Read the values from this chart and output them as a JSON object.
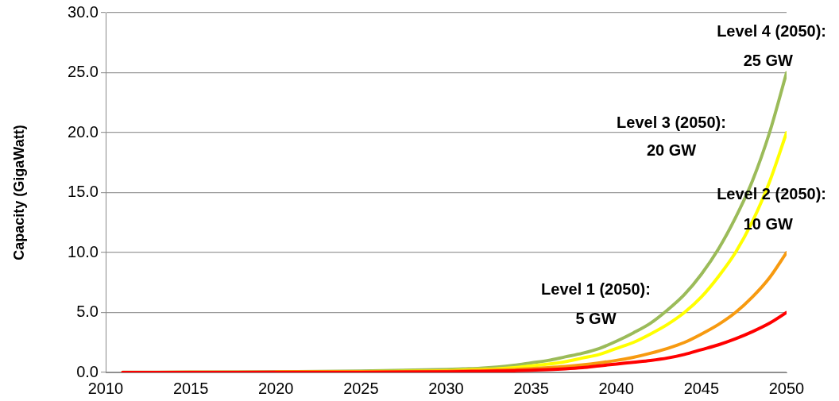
{
  "chart_data": {
    "type": "line",
    "ylabel": "Capacity (GigaWatt)",
    "x": [
      2011,
      2015,
      2020,
      2025,
      2030,
      2031,
      2032,
      2033,
      2034,
      2035,
      2036,
      2037,
      2038,
      2039,
      2040,
      2041,
      2042,
      2043,
      2044,
      2045,
      2046,
      2047,
      2048,
      2049,
      2050
    ],
    "series": [
      {
        "color": "#ff0000",
        "values": [
          0,
          0,
          0.01,
          0.02,
          0.05,
          0.07,
          0.09,
          0.11,
          0.14,
          0.18,
          0.23,
          0.3,
          0.4,
          0.55,
          0.7,
          0.85,
          1.0,
          1.2,
          1.5,
          1.9,
          2.3,
          2.8,
          3.4,
          4.1,
          5
        ]
      },
      {
        "color": "#f79a10",
        "values": [
          0,
          0.01,
          0.02,
          0.04,
          0.1,
          0.13,
          0.16,
          0.2,
          0.25,
          0.32,
          0.4,
          0.5,
          0.63,
          0.8,
          1.0,
          1.26,
          1.6,
          2.0,
          2.5,
          3.2,
          4.0,
          5.0,
          6.3,
          7.9,
          10
        ]
      },
      {
        "color": "#ffff00",
        "values": [
          null,
          null,
          0.03,
          0.07,
          0.15,
          0.2,
          0.25,
          0.3,
          0.4,
          0.55,
          0.7,
          0.9,
          1.2,
          1.5,
          2.0,
          2.5,
          3.2,
          4.0,
          5.0,
          6.3,
          8.0,
          10.0,
          12.6,
          15.9,
          20
        ]
      },
      {
        "color": "#9bbb59",
        "values": [
          0.02,
          0.03,
          0.05,
          0.12,
          0.25,
          0.3,
          0.35,
          0.45,
          0.6,
          0.8,
          1.0,
          1.3,
          1.6,
          2.0,
          2.6,
          3.3,
          4.1,
          5.2,
          6.5,
          8.2,
          10.3,
          12.9,
          16.0,
          20.0,
          25
        ]
      }
    ],
    "xlim": [
      2010,
      2050
    ],
    "xticks": [
      2010,
      2015,
      2020,
      2025,
      2030,
      2035,
      2040,
      2045,
      2050
    ],
    "ylim": [
      0,
      30
    ],
    "yticks": [
      {
        "value": 0,
        "label": "0.0"
      },
      {
        "value": 5,
        "label": "5.0"
      },
      {
        "value": 10,
        "label": "10.0"
      },
      {
        "value": 15,
        "label": "15.0"
      },
      {
        "value": 20,
        "label": "20.0"
      },
      {
        "value": 25,
        "label": "25.0"
      },
      {
        "value": 30,
        "label": "30.0"
      }
    ],
    "grid": "y",
    "legend": false,
    "marker": "none",
    "line_style": "solid",
    "annotations": [
      "Level 1 (2050):\n5 GW",
      "Level 2 (2050):\n10 GW",
      "Level 3 (2050):\n20 GW",
      "Level 4 (2050):\n25 GW"
    ]
  }
}
